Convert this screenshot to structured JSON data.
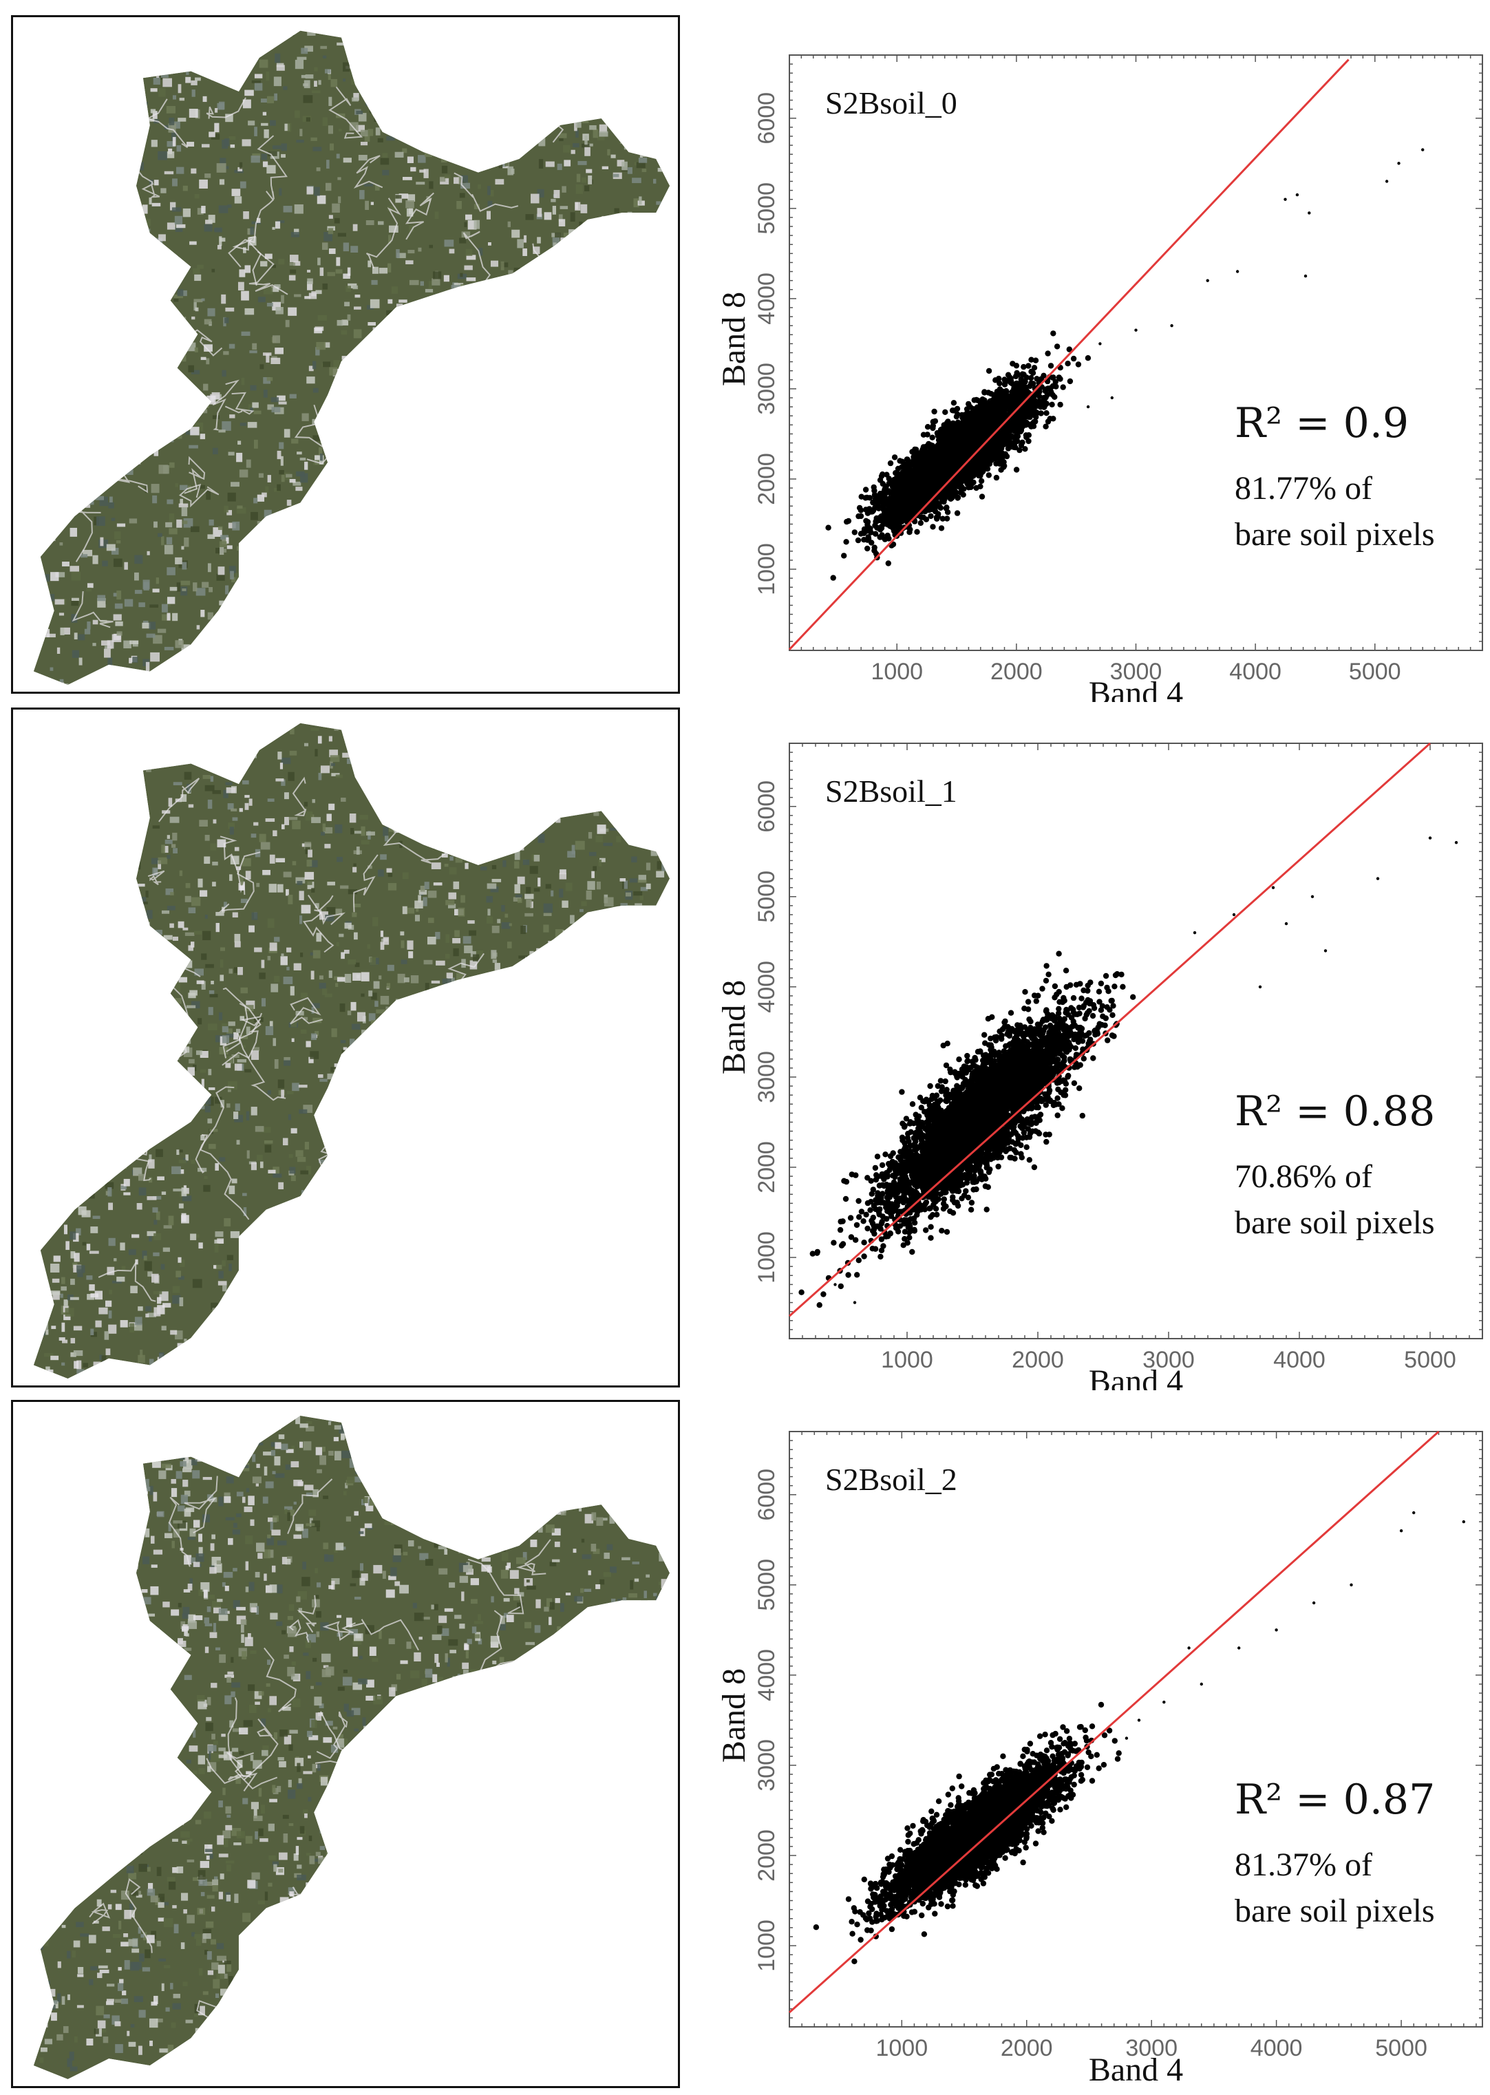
{
  "colors": {
    "points": "#000000",
    "fit_line": "#e23a3a",
    "map_dark": "#55603f",
    "map_light": "#c9cdc6",
    "axis_text": "#666666"
  },
  "chart_data": [
    {
      "type": "scatter",
      "title": "S2Bsoil_0",
      "xlabel": "Band 4",
      "ylabel": "Band 8",
      "xlim": [
        100,
        5900
      ],
      "ylim": [
        100,
        6700
      ],
      "xticks": [
        1000,
        2000,
        3000,
        4000,
        5000
      ],
      "yticks": [
        1000,
        2000,
        3000,
        4000,
        5000,
        6000
      ],
      "r2_label": "R² = 0.9",
      "r2": 0.9,
      "coverage_label": "81.77% of",
      "coverage_label2": "bare soil pixels",
      "coverage_pct": 81.77,
      "fit_line": {
        "x": [
          100,
          4780
        ],
        "y": [
          110,
          6650
        ]
      },
      "cluster": {
        "x_range": [
          600,
          2500
        ],
        "y_range": [
          1100,
          3300
        ],
        "center": [
          1500,
          2250
        ]
      },
      "outliers": [
        [
          2700,
          3500
        ],
        [
          3000,
          3650
        ],
        [
          3300,
          3700
        ],
        [
          4250,
          5100
        ],
        [
          4350,
          5150
        ],
        [
          4450,
          4950
        ],
        [
          4420,
          4250
        ],
        [
          5200,
          5500
        ],
        [
          5400,
          5650
        ],
        [
          5100,
          5300
        ],
        [
          3600,
          4200
        ],
        [
          2600,
          2800
        ],
        [
          2800,
          2900
        ],
        [
          3850,
          4300
        ]
      ]
    },
    {
      "type": "scatter",
      "title": "S2Bsoil_1",
      "xlabel": "Band 4",
      "ylabel": "Band 8",
      "xlim": [
        100,
        5400
      ],
      "ylim": [
        100,
        6700
      ],
      "xticks": [
        1000,
        2000,
        3000,
        4000,
        5000
      ],
      "yticks": [
        1000,
        2000,
        3000,
        4000,
        5000,
        6000
      ],
      "r2_label": "R² = 0.88",
      "r2": 0.88,
      "coverage_label": "70.86% of",
      "coverage_label2": "bare soil pixels",
      "coverage_pct": 70.86,
      "fit_line": {
        "x": [
          100,
          5000
        ],
        "y": [
          350,
          6700
        ]
      },
      "cluster": {
        "x_range": [
          400,
          3000
        ],
        "y_range": [
          700,
          4900
        ],
        "center": [
          1550,
          2550
        ]
      },
      "outliers": [
        [
          3200,
          4600
        ],
        [
          3500,
          4800
        ],
        [
          3800,
          5100
        ],
        [
          4200,
          4400
        ],
        [
          4600,
          5200
        ],
        [
          5000,
          5650
        ],
        [
          5200,
          5600
        ],
        [
          4100,
          5000
        ],
        [
          3700,
          4000
        ],
        [
          600,
          500
        ],
        [
          450,
          700
        ],
        [
          3900,
          4700
        ]
      ]
    },
    {
      "type": "scatter",
      "title": "S2Bsoil_2",
      "xlabel": "Band 4",
      "ylabel": "Band 8",
      "xlim": [
        100,
        5650
      ],
      "ylim": [
        100,
        6700
      ],
      "xticks": [
        1000,
        2000,
        3000,
        4000,
        5000
      ],
      "yticks": [
        1000,
        2000,
        3000,
        4000,
        5000,
        6000
      ],
      "r2_label": "R² = 0.87",
      "r2": 0.87,
      "coverage_label": "81.37% of",
      "coverage_label2": "bare soil pixels",
      "coverage_pct": 81.37,
      "fit_line": {
        "x": [
          100,
          5300
        ],
        "y": [
          260,
          6700
        ]
      },
      "cluster": {
        "x_range": [
          600,
          2650
        ],
        "y_range": [
          1000,
          3400
        ],
        "center": [
          1600,
          2250
        ]
      },
      "outliers": [
        [
          2900,
          3500
        ],
        [
          3100,
          3700
        ],
        [
          3400,
          3900
        ],
        [
          3700,
          4300
        ],
        [
          4000,
          4500
        ],
        [
          4300,
          4800
        ],
        [
          4600,
          5000
        ],
        [
          5000,
          5600
        ],
        [
          5100,
          5800
        ],
        [
          5500,
          5700
        ],
        [
          3300,
          4300
        ],
        [
          2800,
          3300
        ]
      ]
    }
  ]
}
